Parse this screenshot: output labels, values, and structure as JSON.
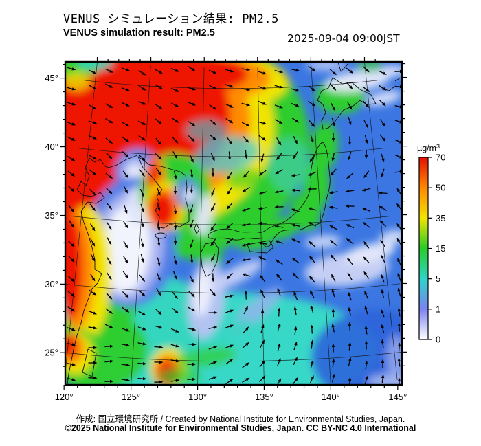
{
  "header": {
    "title_ja": "VENUS シミュレーション結果: PM2.5",
    "title_en": "VENUS simulation result: PM2.5",
    "timestamp": "2025-09-04 09:00JST"
  },
  "footer": {
    "credit": "作成: 国立環境研究所 / Created by National Institute for Environmental Studies, Japan.",
    "license": "©2025 National Institute for Environmental Studies, Japan. CC BY-NC 4.0 International"
  },
  "colorbar": {
    "unit": "µg/m³",
    "unit_parts": {
      "base": "µg/m",
      "exp": "3"
    },
    "tick_values": [
      70,
      50,
      35,
      15,
      5,
      1,
      0
    ],
    "stops": [
      {
        "value": 0,
        "color": "#ffffff"
      },
      {
        "value": 1,
        "color": "#7b83f0"
      },
      {
        "value": 5,
        "color": "#2fd3c8"
      },
      {
        "value": 15,
        "color": "#28cc28"
      },
      {
        "value": 35,
        "color": "#f2e400"
      },
      {
        "value": 50,
        "color": "#ff8800"
      },
      {
        "value": 70,
        "color": "#e60f00"
      }
    ]
  },
  "map": {
    "lat_tick_labels": [
      "45°",
      "40°",
      "35°",
      "30°",
      "25°"
    ],
    "lat_tick_values": [
      45,
      40,
      35,
      30,
      25
    ],
    "lon_tick_labels": [
      "120°",
      "125°",
      "130°",
      "135°",
      "140°",
      "145°"
    ],
    "lon_tick_values": [
      120,
      125,
      130,
      135,
      140,
      145
    ],
    "pollutant": "PM2.5",
    "overlays": {
      "wind_vectors": true,
      "coastlines": true,
      "graticule": true
    }
  },
  "chart_data": {
    "type": "heatmap",
    "title": "VENUS simulation result: PM2.5",
    "timestamp": "2025-09-04 09:00JST",
    "x_ticks_deg_east": [
      120,
      125,
      130,
      135,
      140,
      145
    ],
    "y_ticks_deg_north": [
      25,
      30,
      35,
      40,
      45
    ],
    "colorbar_unit": "µg/m³",
    "colorbar_ticks": [
      0,
      1,
      5,
      15,
      35,
      50,
      70
    ],
    "legend_position": "right",
    "regions": [
      {
        "area": "NE China / Bohai inland (120-128E, 36-45N)",
        "pm25_ugm3": 70,
        "color": "red"
      },
      {
        "area": "Top-left corner (120-122E, 45N)",
        "pm25_ugm3": 15,
        "color": "green"
      },
      {
        "area": "Bohai/Korea Bay patch (~124E, 39N)",
        "pm25_ugm3": 1,
        "color": "pale blue-white"
      },
      {
        "area": "Seoul / W-Korea coast (~127E, 37N)",
        "pm25_ugm3": 70,
        "color": "red"
      },
      {
        "area": "SW Korea / Jeju (~126.5E, 34.5N)",
        "pm25_ugm3": 70,
        "color": "red"
      },
      {
        "area": "Yellow Sea / East China Sea (121-125E, 28-35N)",
        "pm25_ugm3": 0.5,
        "color": "white"
      },
      {
        "area": "China coast strip (120-121E, 26-34N)",
        "pm25_ugm3": 60,
        "color": "red-orange"
      },
      {
        "area": "SE China coast blob (~127.5E, 23.5N)",
        "pm25_ugm3": 60,
        "color": "red"
      },
      {
        "area": "Japan archipelago band (Kyushu-Hokkaido)",
        "pm25_ugm3": 15,
        "color": "green"
      },
      {
        "area": "Sea of Japan / NW Pacific",
        "pm25_ugm3": 2,
        "color": "blue"
      },
      {
        "area": "Pacific mid-right streaks (~140E, 30N)",
        "pm25_ugm3": 0.5,
        "color": "white"
      },
      {
        "area": "Cyclonic vortex SE of Kyushu (~132E, 29.5N)",
        "pm25_ugm3": 1,
        "color": "blue/pale spiral"
      }
    ]
  }
}
